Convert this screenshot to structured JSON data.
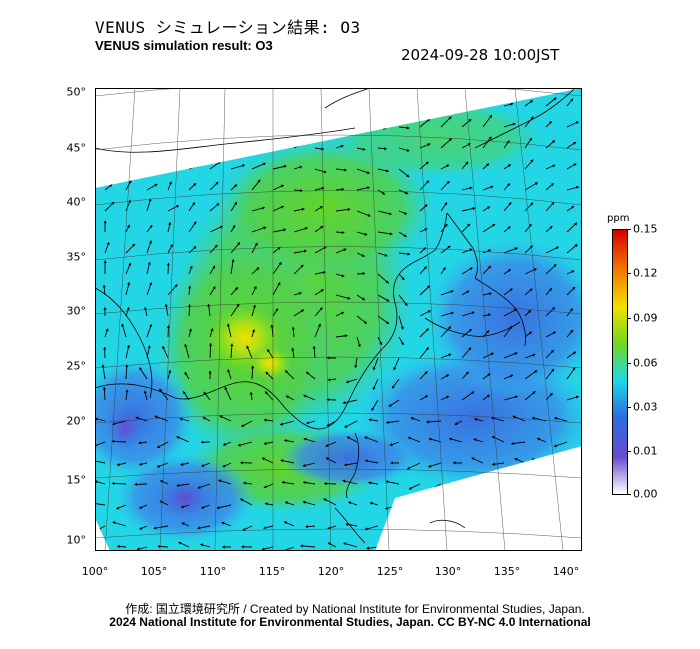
{
  "header": {
    "title_jp": "VENUS シミュレーション結果: O3",
    "title_en": "VENUS simulation result: O3",
    "valid_time": "2024-09-28 10:00JST"
  },
  "axes": {
    "lat_labels": [
      "50°",
      "45°",
      "40°",
      "35°",
      "30°",
      "25°",
      "20°",
      "15°",
      "10°"
    ],
    "lat_values": [
      50,
      45,
      40,
      35,
      30,
      25,
      20,
      15,
      10
    ],
    "lon_labels": [
      "100°",
      "105°",
      "110°",
      "115°",
      "120°",
      "125°",
      "130°",
      "135°",
      "140°"
    ],
    "lon_values": [
      100,
      105,
      110,
      115,
      120,
      125,
      130,
      135,
      140
    ]
  },
  "colorbar": {
    "unit": "ppm",
    "ticks": [
      "0.15",
      "0.12",
      "0.09",
      "0.06",
      "0.03",
      "0.01",
      "0.00"
    ],
    "colors": [
      "#d40000",
      "#f07000",
      "#f2e000",
      "#70d820",
      "#20d8e8",
      "#2a6de0",
      "#6a4ad0",
      "#ffffff"
    ]
  },
  "footer": {
    "credit_jp": "作成: 国立環境研究所 / Created by National Institute for Environmental Studies, Japan.",
    "license": "2024 National Institute for Environmental Studies, Japan. CC BY-NC 4.0 International"
  }
}
